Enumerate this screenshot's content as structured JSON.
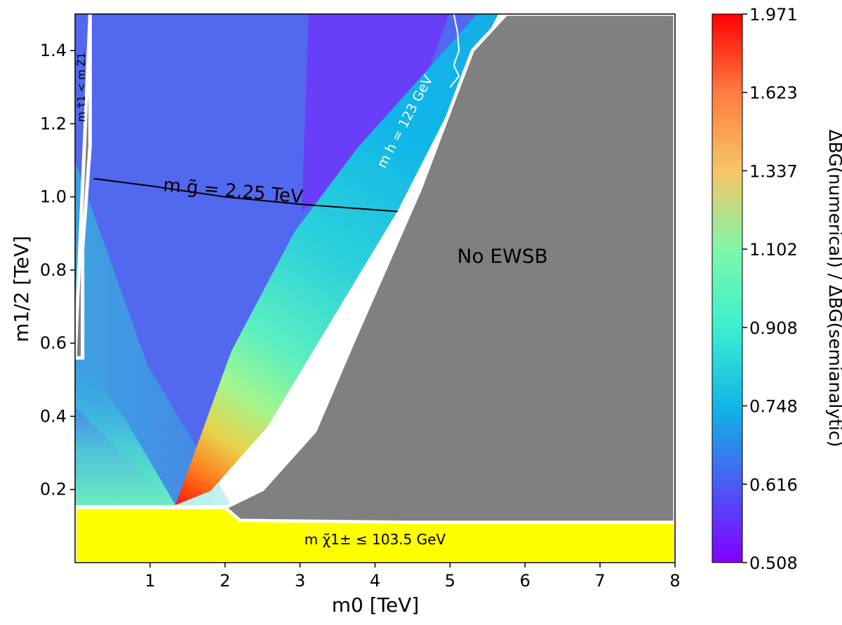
{
  "chart_data": {
    "type": "heatmap",
    "xlabel": "m0 [TeV]",
    "ylabel": "m1/2 [TeV]",
    "xlim": [
      0,
      8
    ],
    "ylim": [
      0,
      1.5
    ],
    "x_ticks": [
      {
        "value": 1,
        "label": "1"
      },
      {
        "value": 2,
        "label": "2"
      },
      {
        "value": 3,
        "label": "3"
      },
      {
        "value": 4,
        "label": "4"
      },
      {
        "value": 5,
        "label": "5"
      },
      {
        "value": 6,
        "label": "6"
      },
      {
        "value": 7,
        "label": "7"
      },
      {
        "value": 8,
        "label": "8"
      }
    ],
    "y_ticks": [
      {
        "value": 0.2,
        "label": "0.2"
      },
      {
        "value": 0.4,
        "label": "0.4"
      },
      {
        "value": 0.6,
        "label": "0.6"
      },
      {
        "value": 0.8,
        "label": "0.8"
      },
      {
        "value": 1.0,
        "label": "1.0"
      },
      {
        "value": 1.2,
        "label": "1.2"
      },
      {
        "value": 1.4,
        "label": "1.4"
      }
    ],
    "colorbar": {
      "label": "ΔBG(numerical) / ΔBG(semianalytic)",
      "min": 0.508,
      "max": 1.971,
      "ticks": [
        {
          "value": 0.508,
          "label": "0.508"
        },
        {
          "value": 0.616,
          "label": "0.616"
        },
        {
          "value": 0.748,
          "label": "0.748"
        },
        {
          "value": 0.908,
          "label": "0.908"
        },
        {
          "value": 1.102,
          "label": "1.102"
        },
        {
          "value": 1.337,
          "label": "1.337"
        },
        {
          "value": 1.623,
          "label": "1.623"
        },
        {
          "value": 1.971,
          "label": "1.971"
        }
      ]
    },
    "regions": {
      "stau_lsp": {
        "label": "m τ̃1 < m Z̃1",
        "color": "#808080",
        "boundary": [
          [
            0.2,
            1.5
          ],
          [
            0.2,
            1.14
          ],
          [
            0.1,
            0.86
          ],
          [
            0.1,
            0.56
          ],
          [
            0,
            0.56
          ]
        ]
      },
      "no_ewsb": {
        "label": "No EWSB",
        "color": "#808080",
        "boundary": [
          [
            5.75,
            1.5
          ],
          [
            5.3,
            1.4
          ],
          [
            4.6,
            1.02
          ],
          [
            3.7,
            0.6
          ],
          [
            3.2,
            0.36
          ],
          [
            2.5,
            0.2
          ],
          [
            2.0,
            0.15
          ],
          [
            2.2,
            0.115
          ],
          [
            4.4,
            0.11
          ],
          [
            8,
            0.11
          ],
          [
            8,
            1.5
          ]
        ]
      },
      "chargino_bound": {
        "label": "m χ̃1± ≤ 103.5 GeV",
        "color": "#ffff00",
        "boundary": [
          [
            0,
            0.15
          ],
          [
            2.0,
            0.15
          ],
          [
            2.2,
            0.115
          ],
          [
            4.4,
            0.11
          ],
          [
            8,
            0.11
          ],
          [
            8,
            0
          ],
          [
            0,
            0
          ]
        ]
      }
    },
    "contours": [
      {
        "name": "gluino-mass",
        "label": "m g̃ = 2.25 TeV",
        "color": "#000000",
        "points": [
          [
            0.25,
            1.05
          ],
          [
            1.0,
            1.03
          ],
          [
            2.0,
            1.0
          ],
          [
            3.0,
            0.98
          ],
          [
            4.3,
            0.96
          ]
        ]
      },
      {
        "name": "higgs-mass",
        "label": "m h = 123 GeV",
        "color": "#ffffff",
        "points": [
          [
            5.05,
            1.5
          ],
          [
            5.1,
            1.45
          ],
          [
            5.12,
            1.4
          ],
          [
            5.05,
            1.36
          ],
          [
            5.12,
            1.33
          ],
          [
            5.0,
            1.3
          ]
        ]
      }
    ],
    "annotations": [
      {
        "text": "No EWSB",
        "x": 5.7,
        "y": 0.82
      },
      {
        "text": "m χ̃1± ≤ 103.5 GeV",
        "x": 4.0,
        "y": 0.05
      },
      {
        "text": "m g̃ = 2.25 TeV",
        "x": 2.1,
        "y": 1.0
      },
      {
        "text": "m h = 123 GeV",
        "x": 4.45,
        "y": 1.2
      },
      {
        "text": "m τ̃1 < m Z̃1",
        "x": 0.13,
        "y": 1.3
      }
    ]
  }
}
